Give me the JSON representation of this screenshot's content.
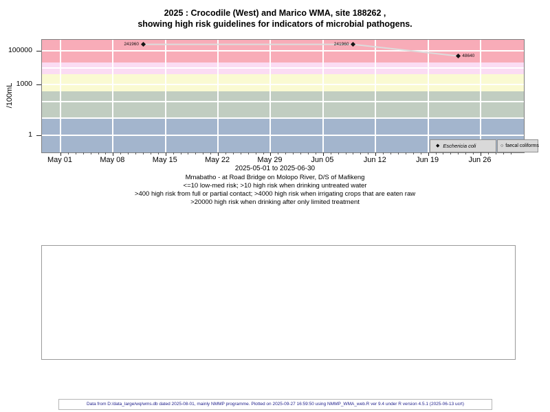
{
  "page": {
    "title_line1": "2025 : Crocodile (West) and Marico WMA, site 188262 ,",
    "title_line2": "showing high risk guidelines for indicators of microbial pathogens.",
    "footer": "Data from D:/data_large/wq/wms.db dated 2025-08-01, mainly NMMP programme. Plotted on 2025-09-27 16:59:50 using NMMP_WMA_web.R ver 9.4 under R version 4.5.1 (2025-06-13 ucrt)"
  },
  "subtitles": {
    "station": "Mmabatho - at Road Bridge on Molopo River, D/S of Mafikeng",
    "guideline1": "<=10 low-med risk; >10 high risk when drinking untreated water",
    "guideline2": ">400 high risk from full or partial contact; >4000 high risk when irrigating crops that are eaten raw",
    "guideline3": ">20000 high risk when drinking after only limited treatment"
  },
  "chart_data": {
    "type": "scatter",
    "title": "2025 : Crocodile (West) and Marico WMA, site 188262 , showing high risk guidelines for indicators of microbial pathogens.",
    "x_axis": {
      "label": "2025-05-01 to 2025-06-30",
      "start": "2025-05-01",
      "end": "2025-06-30",
      "tick_dates": [
        "2025-05-01",
        "2025-05-08",
        "2025-05-15",
        "2025-05-22",
        "2025-05-29",
        "2025-06-05",
        "2025-06-12",
        "2025-06-19",
        "2025-06-26"
      ],
      "tick_labels": [
        "May 01",
        "May 08",
        "May 15",
        "May 22",
        "May 29",
        "Jun 05",
        "Jun 12",
        "Jun 19",
        "Jun 26"
      ]
    },
    "y_axis": {
      "label": "/100mL",
      "scale": "log10",
      "ticks": [
        {
          "value": 100000,
          "label": "100000"
        },
        {
          "value": 1000,
          "label": "1000"
        },
        {
          "value": 1,
          "label": "1"
        }
      ],
      "gridline_values": [
        100000,
        10000,
        1000,
        100,
        10,
        1
      ]
    },
    "series": [
      {
        "name": "Eschericia coli",
        "marker": "filled-diamond",
        "points": [
          {
            "date": "2025-05-12",
            "value": 241960,
            "label": "241960",
            "label_side": "left"
          },
          {
            "date": "2025-06-09",
            "value": 241960,
            "label": "241960",
            "label_side": "left"
          },
          {
            "date": "2025-06-23",
            "value": 48640,
            "label": "48640",
            "label_side": "right"
          }
        ]
      },
      {
        "name": "faecal coliforms",
        "marker": "open-circle",
        "points": []
      }
    ],
    "risk_bands": [
      {
        "min": 20000,
        "max": null,
        "color": "#F8ACB8",
        "meaning": ">20000 high risk when drinking after only limited treatment"
      },
      {
        "min": 4000,
        "max": 20000,
        "color": "#FBDCF3",
        "meaning": ">4000 high risk when irrigating crops that are eaten raw"
      },
      {
        "min": 400,
        "max": 4000,
        "color": "#FAFAD2",
        "meaning": ">400 high risk from full or partial contact"
      },
      {
        "min": 10,
        "max": 400,
        "color": "#C1CDC1",
        "meaning": ">10 high risk when drinking untreated water"
      },
      {
        "min": null,
        "max": 10,
        "color": "#A3B5CD",
        "meaning": "<=10 low-med risk"
      }
    ],
    "legend": {
      "position": "bottom-right",
      "entries": [
        {
          "label": "Eschericia coli",
          "symbol": "filled-diamond",
          "glyph": "◆"
        },
        {
          "label": "faecal coliforms",
          "symbol": "open-circle",
          "glyph": "○"
        }
      ]
    },
    "colors": {
      "gridline": "#FFFFFF",
      "series_line": "#DCDCDC",
      "marker": "#141414",
      "legend_bg": "#D9D9D9"
    },
    "layout_hints": {
      "grid": "white major gridlines on colored bands",
      "legend": "two gray boxes inside plot bottom-right"
    }
  }
}
